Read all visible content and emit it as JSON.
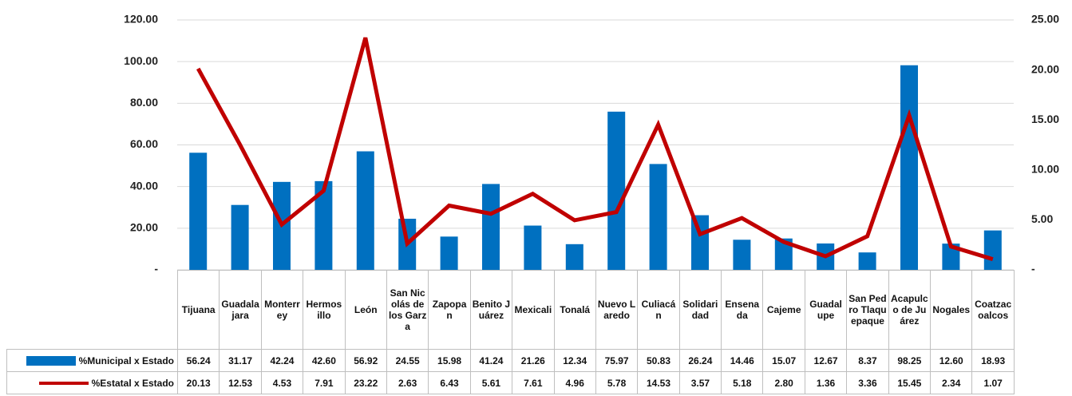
{
  "chart_data": {
    "type": "bar_line",
    "categories": [
      "Tijuana",
      "Guadalajara",
      "Monterrey",
      "Hermosillo",
      "León",
      "San Nicolás de los Garza",
      "Zapopan",
      "Benito Juárez",
      "Mexicali",
      "Tonalá",
      "Nuevo Laredo",
      "Culiacán",
      "Solidaridad",
      "Ensenada",
      "Cajeme",
      "Guadalupe",
      "San Pedro Tlaquepaque",
      "Acapulco de Juárez",
      "Nogales",
      "Coatzacoalcos"
    ],
    "series": [
      {
        "name": "%Municipal x Estado",
        "color": "#0070c0",
        "type": "bar",
        "values": [
          56.24,
          31.17,
          42.24,
          42.6,
          56.92,
          24.55,
          15.98,
          41.24,
          21.26,
          12.34,
          75.97,
          50.83,
          26.24,
          14.46,
          15.07,
          12.67,
          8.37,
          98.25,
          12.6,
          18.93
        ],
        "value_labels": [
          "56.24",
          "31.17",
          "42.24",
          "42.60",
          "56.92",
          "24.55",
          "15.98",
          "41.24",
          "21.26",
          "12.34",
          "75.97",
          "50.83",
          "26.24",
          "14.46",
          "15.07",
          "12.67",
          "8.37",
          "98.25",
          "12.60",
          "18.93"
        ]
      },
      {
        "name": "%Estatal x Estado",
        "color": "#c00000",
        "type": "line",
        "axis": "y2",
        "values": [
          20.13,
          12.53,
          4.53,
          7.91,
          23.22,
          2.63,
          6.43,
          5.61,
          7.61,
          4.96,
          5.78,
          14.53,
          3.57,
          5.18,
          2.8,
          1.36,
          3.36,
          15.45,
          2.34,
          1.07
        ],
        "value_labels": [
          "20.13",
          "12.53",
          "4.53",
          "7.91",
          "23.22",
          "2.63",
          "6.43",
          "5.61",
          "7.61",
          "4.96",
          "5.78",
          "14.53",
          "3.57",
          "5.18",
          "2.80",
          "1.36",
          "3.36",
          "15.45",
          "2.34",
          "1.07"
        ]
      }
    ],
    "ylim": [
      0,
      120
    ],
    "yticks": [
      {
        "value": 0,
        "label": "-"
      },
      {
        "value": 20,
        "label": "20.00"
      },
      {
        "value": 40,
        "label": "40.00"
      },
      {
        "value": 60,
        "label": "60.00"
      },
      {
        "value": 80,
        "label": "80.00"
      },
      {
        "value": 100,
        "label": "100.00"
      },
      {
        "value": 120,
        "label": "120.00"
      }
    ],
    "y2lim": [
      0,
      25
    ],
    "y2ticks": [
      {
        "value": 0,
        "label": "-"
      },
      {
        "value": 5,
        "label": "5.00"
      },
      {
        "value": 10,
        "label": "10.00"
      },
      {
        "value": 15,
        "label": "15.00"
      },
      {
        "value": 20,
        "label": "20.00"
      },
      {
        "value": 25,
        "label": "25.00"
      }
    ],
    "grid": true
  }
}
